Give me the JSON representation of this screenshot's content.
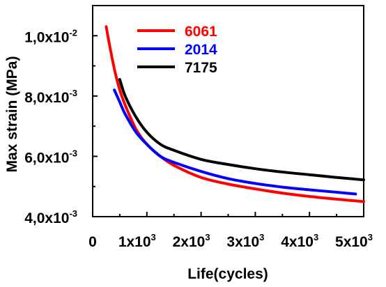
{
  "chart_data": {
    "type": "line",
    "title": "",
    "xlabel": "Life(cycles)",
    "ylabel": "Max strain (MPa)",
    "xlim": [
      0,
      5000
    ],
    "ylim": [
      0.004,
      0.011
    ],
    "x_ticks": [
      {
        "value": 0,
        "base": "0",
        "exp": ""
      },
      {
        "value": 1000,
        "base": "1x10",
        "exp": "3"
      },
      {
        "value": 2000,
        "base": "2x10",
        "exp": "3"
      },
      {
        "value": 3000,
        "base": "3x10",
        "exp": "3"
      },
      {
        "value": 4000,
        "base": "4x10",
        "exp": "3"
      },
      {
        "value": 5000,
        "base": "5x10",
        "exp": "3"
      }
    ],
    "y_ticks": [
      {
        "value": 0.004,
        "base": "4,0x10",
        "exp": "-3"
      },
      {
        "value": 0.006,
        "base": "6,0x10",
        "exp": "-3"
      },
      {
        "value": 0.008,
        "base": "8,0x10",
        "exp": "-3"
      },
      {
        "value": 0.01,
        "base": "1,0x10",
        "exp": "-2"
      }
    ],
    "legend_position": "top-center",
    "grid": false,
    "series": [
      {
        "name": "6061",
        "color": "#ff0000",
        "x": [
          250,
          300,
          400,
          500,
          600,
          800,
          1000,
          1250,
          1500,
          2000,
          2500,
          3000,
          3500,
          4000,
          4500,
          5000
        ],
        "y": [
          0.0103,
          0.0098,
          0.0089,
          0.0082,
          0.0077,
          0.0069,
          0.0064,
          0.006,
          0.0057,
          0.0053,
          0.00508,
          0.00492,
          0.00478,
          0.00467,
          0.00458,
          0.0045
        ]
      },
      {
        "name": "2014",
        "color": "#0000ff",
        "x": [
          400,
          500,
          600,
          800,
          1000,
          1250,
          1500,
          2000,
          2500,
          3000,
          3500,
          4000,
          4500,
          4850
        ],
        "y": [
          0.0082,
          0.0078,
          0.0074,
          0.0068,
          0.0064,
          0.006,
          0.0058,
          0.0055,
          0.00526,
          0.0051,
          0.00498,
          0.00489,
          0.00481,
          0.00475
        ]
      },
      {
        "name": "7175",
        "color": "#000000",
        "x": [
          500,
          600,
          800,
          1000,
          1250,
          1500,
          2000,
          2500,
          3000,
          3500,
          4000,
          4500,
          5000
        ],
        "y": [
          0.00855,
          0.008,
          0.0073,
          0.0068,
          0.0064,
          0.0062,
          0.0059,
          0.00573,
          0.00559,
          0.00548,
          0.00539,
          0.0053,
          0.00522
        ]
      }
    ]
  }
}
